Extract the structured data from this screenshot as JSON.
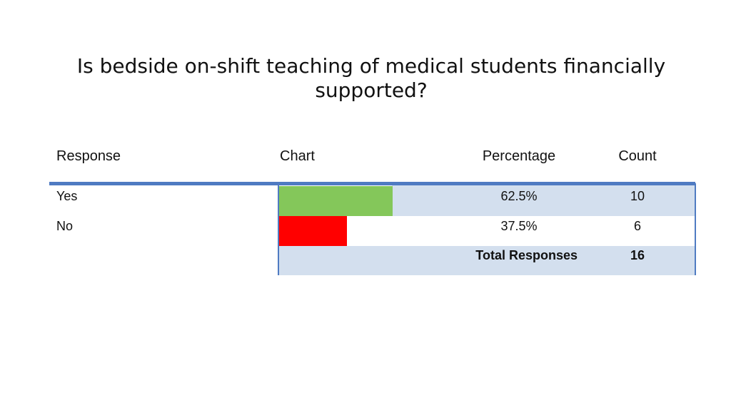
{
  "title": "Is bedside on-shift teaching of medical students financially supported?",
  "headers": {
    "response": "Response",
    "chart": "Chart",
    "percentage": "Percentage",
    "count": "Count"
  },
  "rows": [
    {
      "response": "Yes",
      "percentage": "62.5%",
      "count": "10",
      "color": "#84c75a"
    },
    {
      "response": "No",
      "percentage": "37.5%",
      "count": "6",
      "color": "#ff0000"
    }
  ],
  "total": {
    "label": "Total Responses",
    "count": "16"
  },
  "chart_data": {
    "type": "bar",
    "orientation": "horizontal",
    "categories": [
      "Yes",
      "No"
    ],
    "values": [
      10,
      6
    ],
    "percentages": [
      62.5,
      37.5
    ],
    "colors": [
      "#84c75a",
      "#ff0000"
    ],
    "title": "Is bedside on-shift teaching of medical students financially supported?",
    "xlabel": "",
    "ylabel": "",
    "grid": false,
    "legend": "none"
  }
}
